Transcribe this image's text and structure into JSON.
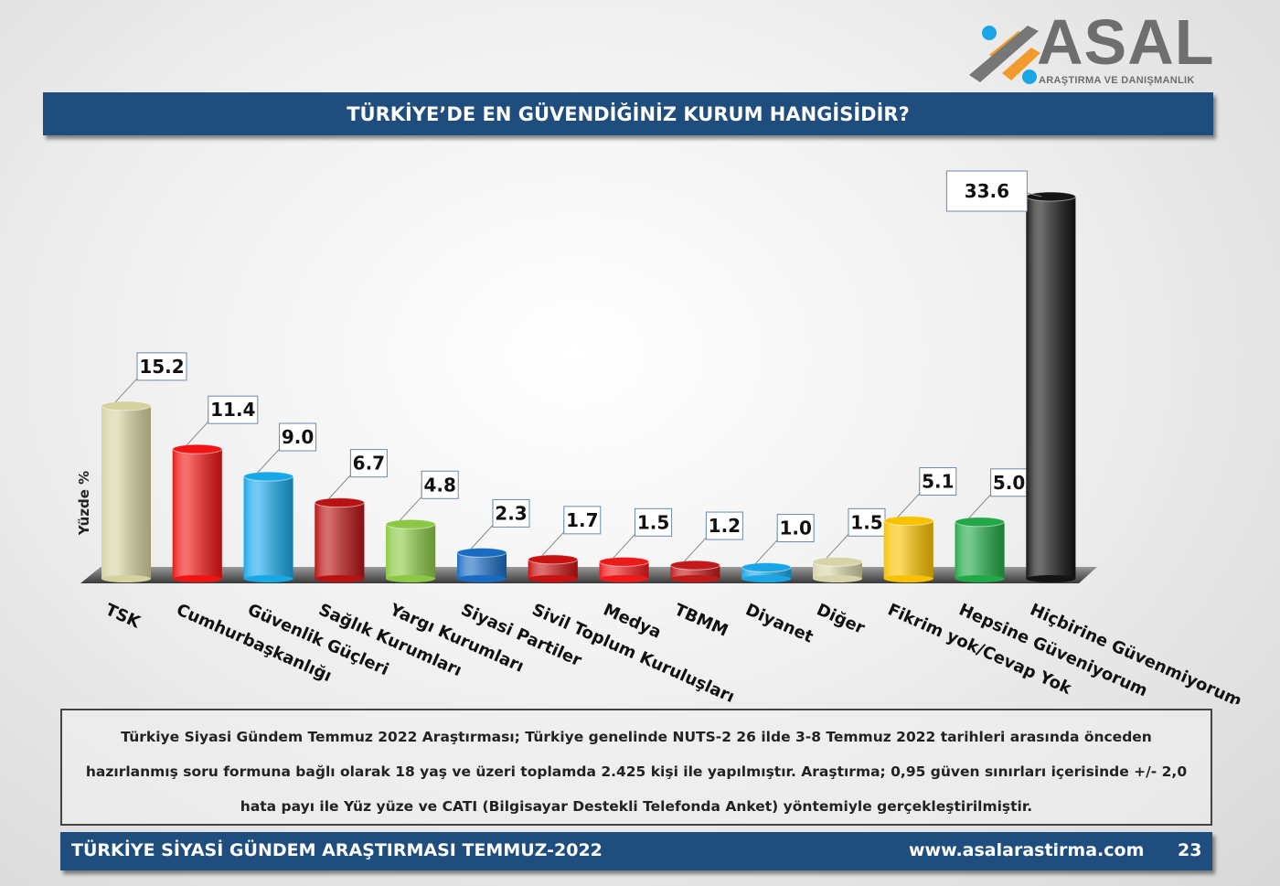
{
  "logo": {
    "name": "ASAL",
    "subtitle": "ARAŞTIRMA VE DANIŞMANLIK"
  },
  "header": {
    "title": "TÜRKİYE’DE EN GÜVENDİĞİNİZ KURUM HANGİSİDİR?"
  },
  "chart_data": {
    "type": "bar",
    "title": "TÜRKİYE’DE EN GÜVENDİĞİNİZ KURUM HANGİSİDİR?",
    "ylabel": "Yüzde %",
    "xlabel": "",
    "ylim": [
      0,
      35
    ],
    "grid": false,
    "categories": [
      "TSK",
      "Cumhurbaşkanlığı",
      "Güvenlik Güçleri",
      "Sağlık Kurumları",
      "Yargı Kurumları",
      "Siyasi Partiler",
      "Sivil Toplum Kuruluşları",
      "Medya",
      "TBMM",
      "Diyanet",
      "Diğer",
      "Fikrim yok/Cevap Yok",
      "Hepsine Güveniyorum",
      "Hiçbirine Güvenmiyorum"
    ],
    "values": [
      15.2,
      11.4,
      9.0,
      6.7,
      4.8,
      2.3,
      1.7,
      1.5,
      1.2,
      1.0,
      1.5,
      5.1,
      5.0,
      33.6
    ],
    "value_labels": [
      "15.2",
      "11.4",
      "9.0",
      "6.7",
      "4.8",
      "2.3",
      "1.7",
      "1.5",
      "1.2",
      "1.0",
      "1.5",
      "5.1",
      "5.0",
      "33.6"
    ],
    "colors": [
      "#d6d2a0",
      "#f01414",
      "#18a8e8",
      "#b81212",
      "#8cc846",
      "#1a6cc2",
      "#c81212",
      "#ee1a1a",
      "#c01a1a",
      "#1aa6e6",
      "#d8d4aa",
      "#f8c200",
      "#22a846",
      "#141414"
    ]
  },
  "note": {
    "lines": [
      "Türkiye Siyasi Gündem Temmuz 2022 Araştırması; Türkiye genelinde NUTS-2 26 ilde 3-8 Temmuz 2022  tarihleri arasında önceden",
      "hazırlanmış soru formuna bağlı olarak 18 yaş ve üzeri toplamda 2.425 kişi ile yapılmıştır. Araştırma; 0,95 güven sınırları içerisinde +/- 2,0",
      "hata payı ile Yüz yüze ve CATI (Bilgisayar Destekli Telefonda Anket) yöntemiyle gerçekleştirilmiştir."
    ]
  },
  "footer": {
    "left": "TÜRKİYE SİYASİ GÜNDEM ARAŞTIRMASI  TEMMUZ-2022",
    "url": "www.asalarastirma.com",
    "page": "23"
  }
}
